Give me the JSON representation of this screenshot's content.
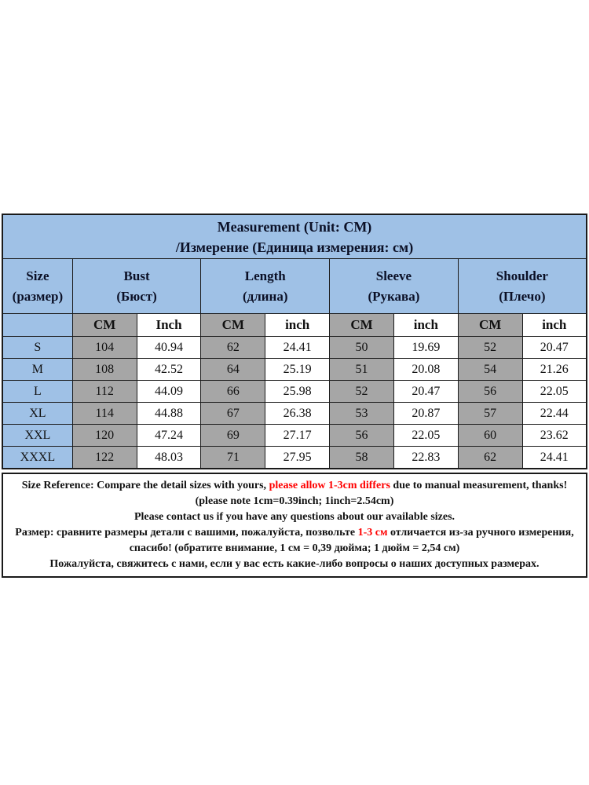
{
  "colors": {
    "header_blue": "#9fc1e6",
    "cm_gray": "#a6a6a6",
    "accent_red": "#ff0000",
    "border_black": "#1a1a1a"
  },
  "table": {
    "title_line1": "Measurement (Unit: CM)",
    "title_line2": "/Измерение (Единица измерения: см)",
    "columns": [
      {
        "en": "Size",
        "ru": "(размер)"
      },
      {
        "en": "Bust",
        "ru": "(Бюст)"
      },
      {
        "en": "Length",
        "ru": "(длина)"
      },
      {
        "en": "Sleeve",
        "ru": "(Рукава)"
      },
      {
        "en": "Shoulder",
        "ru": "(Плечо)"
      }
    ],
    "unit_headers": [
      "CM",
      "Inch",
      "CM",
      "inch",
      "CM",
      "inch",
      "CM",
      "inch"
    ],
    "rows": [
      {
        "size": "S",
        "values": [
          "104",
          "40.94",
          "62",
          "24.41",
          "50",
          "19.69",
          "52",
          "20.47"
        ]
      },
      {
        "size": "M",
        "values": [
          "108",
          "42.52",
          "64",
          "25.19",
          "51",
          "20.08",
          "54",
          "21.26"
        ]
      },
      {
        "size": "L",
        "values": [
          "112",
          "44.09",
          "66",
          "25.98",
          "52",
          "20.47",
          "56",
          "22.05"
        ]
      },
      {
        "size": "XL",
        "values": [
          "114",
          "44.88",
          "67",
          "26.38",
          "53",
          "20.87",
          "57",
          "22.44"
        ]
      },
      {
        "size": "XXL",
        "values": [
          "120",
          "47.24",
          "69",
          "27.17",
          "56",
          "22.05",
          "60",
          "23.62"
        ]
      },
      {
        "size": "XXXL",
        "values": [
          "122",
          "48.03",
          "71",
          "27.95",
          "58",
          "22.83",
          "62",
          "24.41"
        ]
      }
    ]
  },
  "notes": {
    "lines": [
      [
        {
          "text": "Size Reference: Compare the detail sizes with yours, ",
          "red": false
        },
        {
          "text": "please allow 1-3cm differs",
          "red": true
        },
        {
          "text": " due to manual measurement, thanks!",
          "red": false
        }
      ],
      [
        {
          "text": "(please note 1cm=0.39inch; 1inch=2.54cm)",
          "red": false
        }
      ],
      [
        {
          "text": "Please contact us if you have any questions about our available sizes.",
          "red": false
        }
      ],
      [
        {
          "text": "Размер: сравните размеры детали с вашими, пожалуйста, позвольте ",
          "red": false
        },
        {
          "text": "1-3 см",
          "red": true
        },
        {
          "text": " отличается из-за ручного измерения,",
          "red": false
        }
      ],
      [
        {
          "text": "спасибо! (обратите внимание, 1 см = 0,39 дюйма; 1 дюйм = 2,54 см)",
          "red": false
        }
      ],
      [
        {
          "text": "Пожалуйста, свяжитесь с нами, если у вас есть какие-либо вопросы о наших доступных размерах.",
          "red": false
        }
      ]
    ]
  }
}
